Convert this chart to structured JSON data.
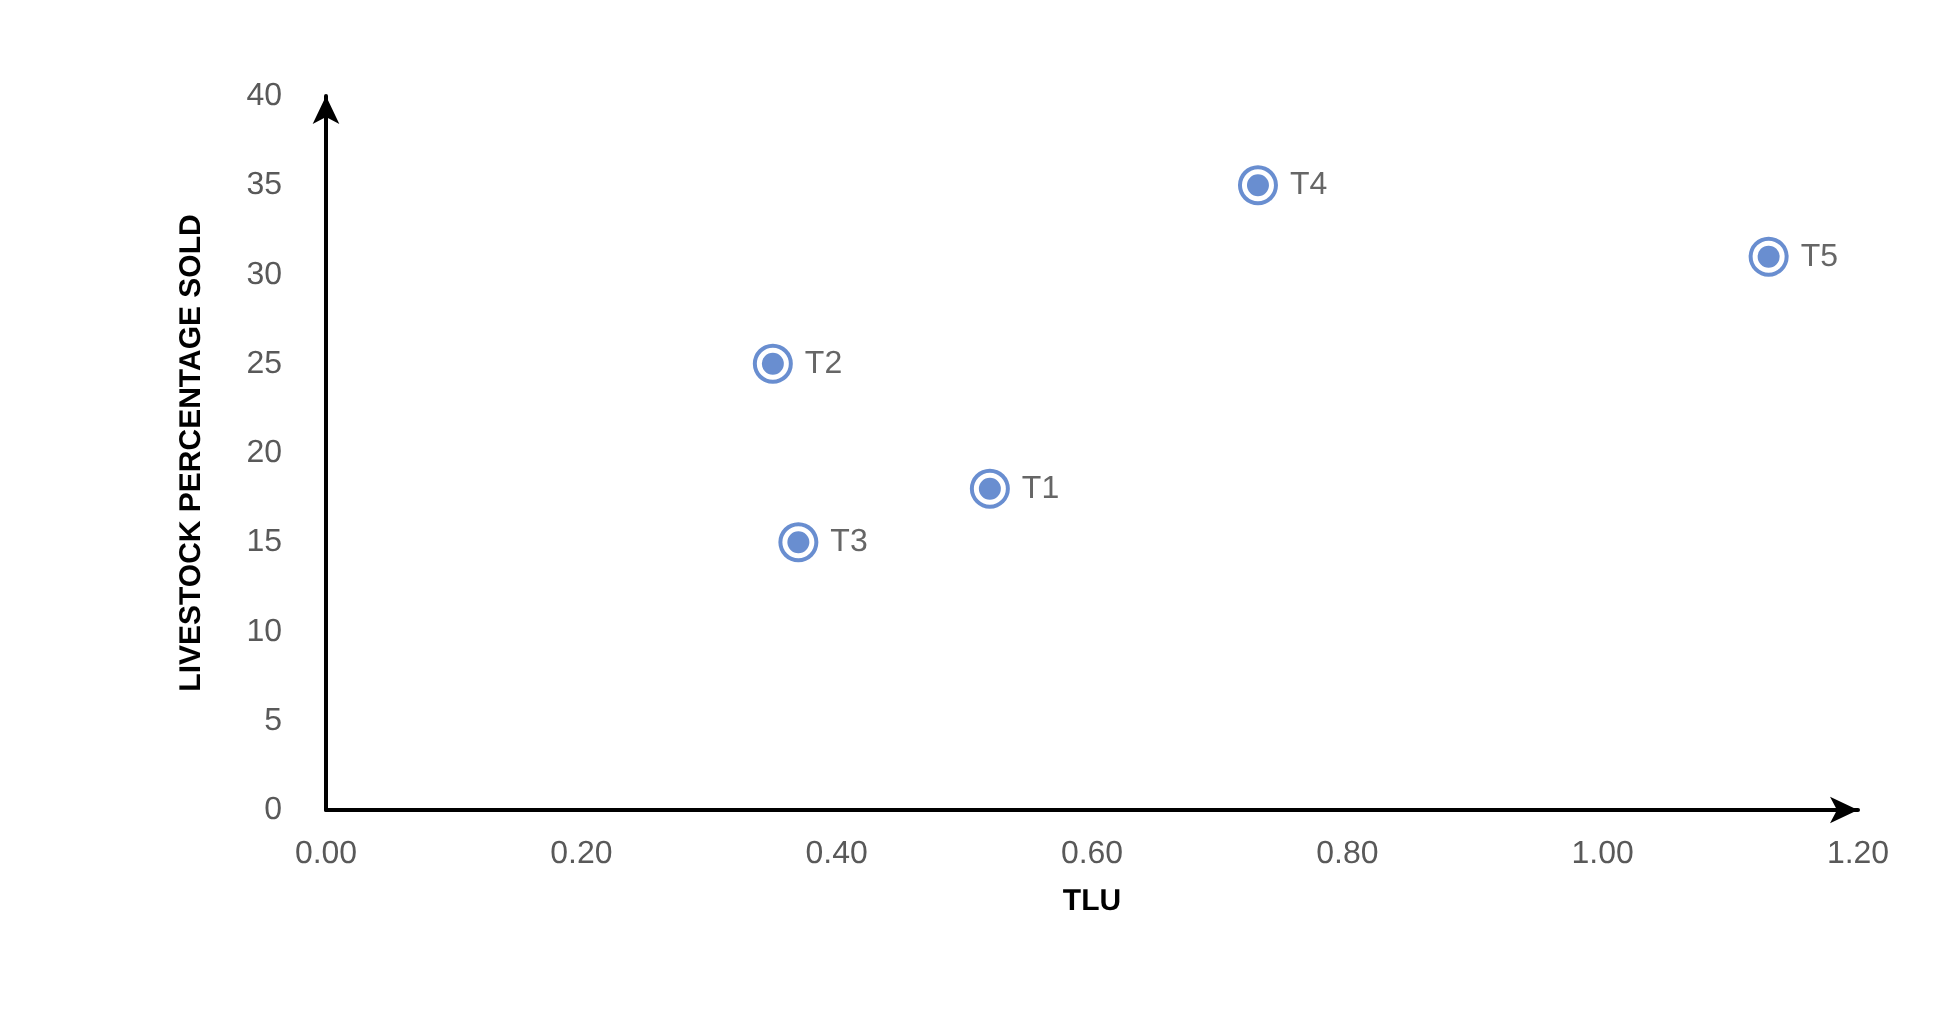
{
  "chart_data": {
    "type": "scatter",
    "xlabel": "TLU",
    "ylabel": "LIVESTOCK PERCENTAGE SOLD",
    "x": [
      0.52,
      0.35,
      0.37,
      0.73,
      1.13
    ],
    "series": [
      {
        "color": "#4472c4",
        "values": [
          18,
          25,
          15,
          35,
          31
        ]
      }
    ],
    "annotations": [
      {
        "text": "T1",
        "x": 0.52,
        "y": 18
      },
      {
        "text": "T2",
        "x": 0.35,
        "y": 25
      },
      {
        "text": "T3",
        "x": 0.37,
        "y": 15
      },
      {
        "text": "T4",
        "x": 0.73,
        "y": 35
      },
      {
        "text": "T5",
        "x": 1.13,
        "y": 31
      }
    ],
    "xlim": [
      0,
      1.2
    ],
    "xticks": [
      {
        "value": 0,
        "label": "0.00"
      },
      {
        "value": 0.2,
        "label": "0.20"
      },
      {
        "value": 0.4,
        "label": "0.40"
      },
      {
        "value": 0.6,
        "label": "0.60"
      },
      {
        "value": 0.8,
        "label": "0.80"
      },
      {
        "value": 1,
        "label": "1.00"
      },
      {
        "value": 1.2,
        "label": "1.20"
      }
    ],
    "ylim": [
      0,
      40
    ],
    "yticks": [
      0,
      5,
      10,
      15,
      20,
      25,
      30,
      35,
      40
    ],
    "grid": false,
    "marker": "circle"
  }
}
